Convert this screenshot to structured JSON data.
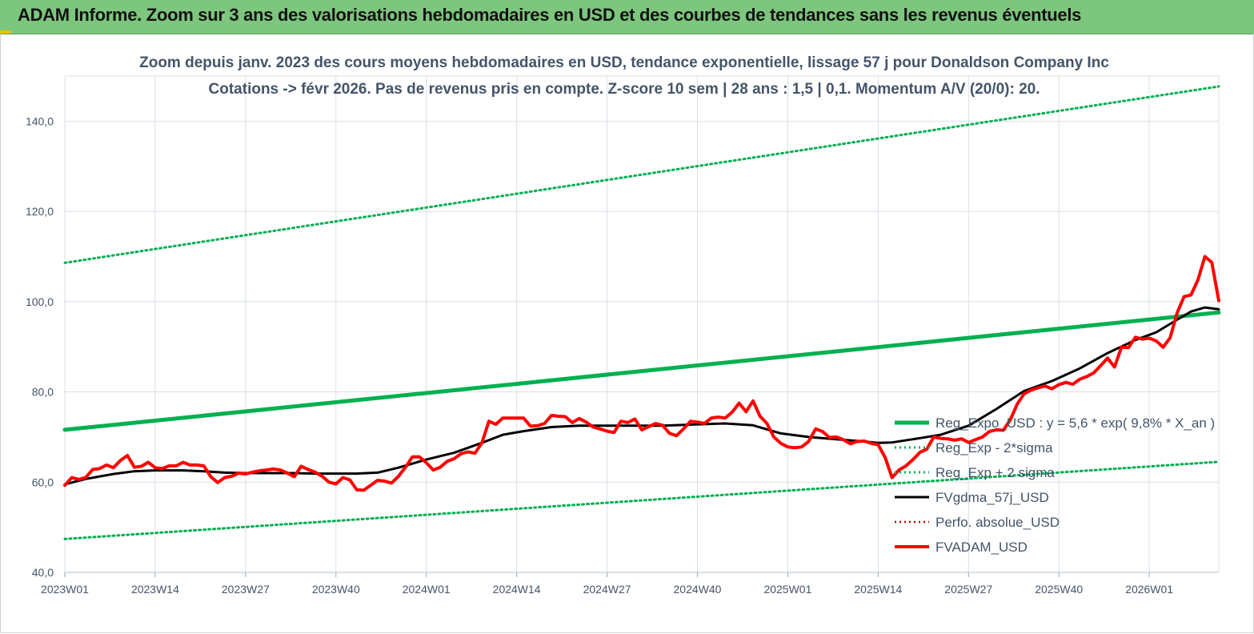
{
  "banner": {
    "title": "ADAM Informe. Zoom sur 3 ans des valorisations hebdomadaires en USD et des courbes de tendances sans les revenus éventuels"
  },
  "colors": {
    "banner": "#7dc67d",
    "trend": "#00b050",
    "gdma": "#000000",
    "adam": "#ff0000",
    "perfo": "#c00000",
    "axis_text": "#44546a",
    "grid": "#d9e1e8"
  },
  "chart_data": {
    "type": "line",
    "title": "Zoom depuis janv. 2023 des cours moyens hebdomadaires en USD, tendance exponentielle, lissage 57 j pour Donaldson Company Inc",
    "subtitle": "Cotations -> févr 2026. Pas de revenus pris en compte. Z-score 10 sem | 28 ans : 1,5 | 0,1. Momentum A/V (20/0): 20.",
    "xlabel": "",
    "ylabel": "",
    "ylim": [
      40,
      150
    ],
    "yticks": [
      "40,0",
      "60,0",
      "80,0",
      "100,0",
      "120,0",
      "140,0"
    ],
    "ytick_values": [
      40,
      60,
      80,
      100,
      120,
      140
    ],
    "xticks": [
      "2023W01",
      "2023W14",
      "2023W27",
      "2023W40",
      "2024W01",
      "2024W14",
      "2024W27",
      "2024W40",
      "2025W01",
      "2025W14",
      "2025W27",
      "2025W40",
      "2026W01"
    ],
    "xtick_weeks": [
      0,
      13,
      26,
      39,
      52,
      65,
      78,
      91,
      104,
      117,
      130,
      143,
      156
    ],
    "x_last_week": 166,
    "grid": true,
    "legend_position": "bottom-right",
    "series": [
      {
        "name": "Reg_Expo_USD : y = 5,6 * exp( 9,8% * X_an )",
        "style": "thick-solid",
        "x": [
          0,
          166
        ],
        "values": [
          71.6,
          97.6
        ]
      },
      {
        "name": "Reg_Exp - 2*sigma",
        "style": "dotted",
        "x": [
          0,
          166
        ],
        "values": [
          47.4,
          64.5
        ]
      },
      {
        "name": "Reg_Exp + 2 sigma",
        "style": "dotted",
        "x": [
          0,
          166
        ],
        "values": [
          108.6,
          147.7
        ]
      },
      {
        "name": "FVgdma_57j_USD",
        "style": "solid",
        "x": [
          0,
          3,
          7,
          10,
          13,
          17,
          20,
          23,
          26,
          30,
          33,
          36,
          39,
          42,
          45,
          48,
          52,
          56,
          60,
          63,
          66,
          70,
          74,
          78,
          82,
          86,
          91,
          95,
          99,
          103,
          107,
          111,
          115,
          117,
          119,
          122,
          126,
          130,
          134,
          138,
          142,
          146,
          150,
          154,
          157,
          160,
          162,
          164,
          166
        ],
        "values": [
          59.5,
          60.7,
          61.8,
          62.4,
          62.6,
          62.6,
          62.4,
          62.1,
          62.0,
          62.0,
          62.0,
          61.9,
          61.9,
          61.9,
          62.1,
          63.2,
          65.0,
          66.5,
          68.7,
          70.5,
          71.3,
          72.2,
          72.5,
          72.5,
          72.5,
          72.5,
          72.8,
          73.0,
          72.6,
          70.8,
          70.0,
          69.5,
          69.0,
          68.7,
          68.8,
          69.5,
          70.5,
          72.5,
          76.2,
          80.2,
          82.4,
          85.2,
          88.6,
          91.5,
          93.2,
          96.0,
          97.8,
          98.7,
          98.3
        ]
      },
      {
        "name": "Perfo. absolue_USD",
        "style": "dotted",
        "x": [],
        "values": []
      },
      {
        "name": "FVADAM_USD",
        "style": "thick-solid",
        "x": [
          0,
          1,
          2,
          3,
          4,
          5,
          6,
          7,
          8,
          9,
          10,
          11,
          12,
          13,
          14,
          15,
          16,
          17,
          18,
          19,
          20,
          21,
          22,
          23,
          24,
          25,
          26,
          27,
          28,
          29,
          30,
          31,
          32,
          33,
          34,
          35,
          36,
          37,
          38,
          39,
          40,
          41,
          42,
          43,
          44,
          45,
          46,
          47,
          48,
          49,
          50,
          51,
          52,
          53,
          54,
          55,
          56,
          57,
          58,
          59,
          60,
          61,
          62,
          63,
          64,
          65,
          66,
          67,
          68,
          69,
          70,
          71,
          72,
          73,
          74,
          75,
          76,
          77,
          78,
          79,
          80,
          81,
          82,
          83,
          84,
          85,
          86,
          87,
          88,
          89,
          90,
          91,
          92,
          93,
          94,
          95,
          96,
          97,
          98,
          99,
          100,
          101,
          102,
          103,
          104,
          105,
          106,
          107,
          108,
          109,
          110,
          111,
          112,
          113,
          114,
          115,
          116,
          117,
          118,
          119,
          120,
          121,
          122,
          123,
          124,
          125,
          126,
          127,
          128,
          129,
          130,
          131,
          132,
          133,
          134,
          135,
          136,
          137,
          138,
          139,
          140,
          141,
          142,
          143,
          144,
          145,
          146,
          147,
          148,
          149,
          150,
          151,
          152,
          153,
          154,
          155,
          156,
          157,
          158,
          159,
          160,
          161,
          162,
          163,
          164,
          165,
          166
        ],
        "values": [
          59.3,
          61.0,
          60.6,
          61.0,
          62.8,
          63.0,
          63.8,
          63.2,
          64.8,
          65.9,
          63.3,
          63.5,
          64.4,
          63.2,
          63.0,
          63.6,
          63.6,
          64.4,
          63.8,
          63.8,
          63.6,
          61.2,
          59.9,
          61.0,
          61.3,
          62.0,
          61.8,
          62.2,
          62.5,
          62.7,
          62.9,
          62.7,
          62.0,
          61.2,
          63.5,
          62.8,
          62.2,
          61.3,
          60.0,
          59.6,
          61.0,
          60.5,
          58.3,
          58.2,
          59.3,
          60.4,
          60.2,
          59.8,
          61.3,
          63.3,
          65.6,
          65.6,
          64.3,
          62.7,
          63.3,
          64.6,
          65.2,
          66.3,
          66.7,
          66.4,
          68.7,
          73.5,
          72.8,
          74.2,
          74.2,
          74.2,
          74.2,
          72.4,
          72.5,
          73.0,
          74.8,
          74.6,
          74.5,
          73.2,
          74.1,
          73.3,
          72.2,
          71.8,
          71.3,
          71.0,
          73.5,
          73.2,
          74.0,
          71.6,
          72.3,
          73.0,
          72.6,
          70.8,
          70.3,
          71.8,
          73.5,
          73.3,
          73.0,
          74.2,
          74.4,
          74.2,
          75.5,
          77.5,
          75.6,
          78.0,
          74.6,
          73.0,
          70.0,
          68.6,
          67.8,
          67.6,
          67.8,
          69.0,
          71.8,
          71.2,
          69.9,
          70.0,
          69.4,
          68.5,
          69.0,
          69.1,
          68.6,
          68.3,
          65.5,
          61.0,
          62.7,
          63.6,
          65.0,
          66.6,
          67.3,
          70.0,
          69.7,
          69.6,
          69.3,
          69.6,
          68.8,
          69.4,
          70.0,
          71.2,
          71.6,
          71.5,
          73.8,
          77.3,
          79.6,
          80.4,
          80.9,
          81.3,
          80.7,
          81.6,
          82.1,
          81.7,
          82.8,
          83.4,
          84.2,
          85.8,
          87.5,
          85.5,
          89.9,
          89.8,
          92.1,
          91.7,
          91.9,
          91.3,
          89.9,
          92.0,
          97.5,
          101.1,
          101.5,
          104.8,
          110.0,
          108.7,
          100.2
        ]
      }
    ]
  }
}
